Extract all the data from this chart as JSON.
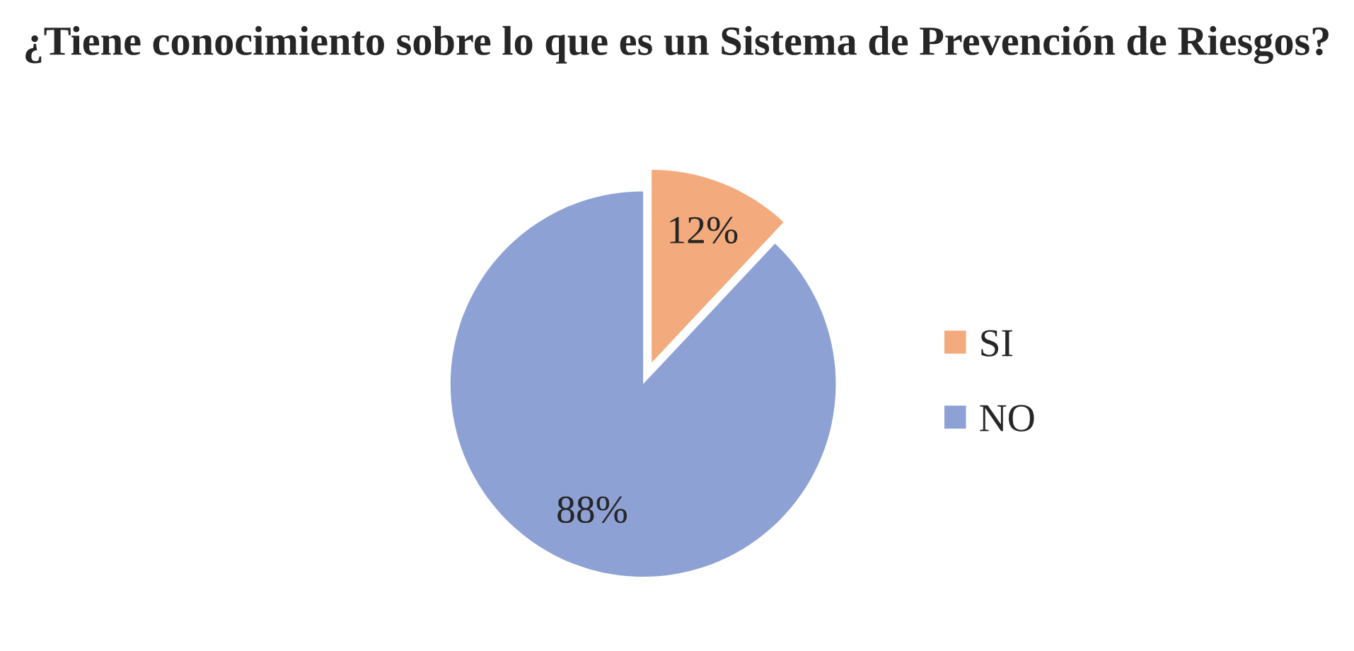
{
  "chart_data": {
    "type": "pie",
    "title": "¿Tiene conocimiento sobre lo que es un Sistema de Prevención de Riesgos?",
    "categories": [
      "SI",
      "NO"
    ],
    "values": [
      12,
      88
    ],
    "colors": [
      "#f3aa7c",
      "#8ea1d4"
    ],
    "value_labels": [
      "12%",
      "88%"
    ],
    "legend": "right"
  }
}
